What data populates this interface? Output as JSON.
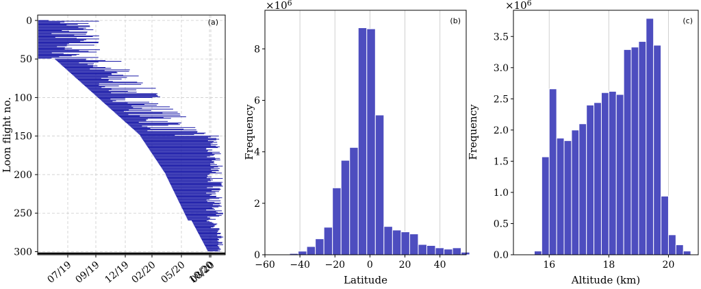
{
  "chart_data": [
    {
      "type": "gantt",
      "panel_label": "(a)",
      "ylabel": "Loon flight no.",
      "xlabel": "",
      "x_ticks": [
        "07/19",
        "09/19",
        "12/19",
        "02/20",
        "05/20",
        "08/20",
        "10/20"
      ],
      "y_ticks": [
        "0",
        "50",
        "100",
        "150",
        "200",
        "250",
        "300"
      ],
      "ylim": [
        304,
        -7
      ],
      "xlim_months": [
        0,
        16.2
      ],
      "flights_total": 300,
      "grid": true,
      "series_color": "#1a1aa8"
    },
    {
      "type": "bar",
      "panel_label": "(b)",
      "xlabel": "Latitude",
      "ylabel": "Frequency",
      "scale_label": "×10",
      "scale_exp": "6",
      "x_ticks": [
        "−60",
        "−40",
        "−20",
        "0",
        "20",
        "40"
      ],
      "y_ticks": [
        "0",
        "2",
        "4",
        "6",
        "8"
      ],
      "xlim": [
        -60,
        55
      ],
      "ylim": [
        0,
        9.5
      ],
      "bin_width": 4.9,
      "bin_edges_start": -45.9,
      "values": [
        0.05,
        0.14,
        0.32,
        0.62,
        1.07,
        2.6,
        3.67,
        4.17,
        8.82,
        8.78,
        5.43,
        1.1,
        0.96,
        0.89,
        0.81,
        0.4,
        0.36,
        0.27,
        0.22,
        0.27,
        0.1
      ],
      "grid": "x",
      "bar_color": "#4d4dbf"
    },
    {
      "type": "bar",
      "panel_label": "(c)",
      "xlabel": "Altitude (km)",
      "ylabel": "Frequency",
      "scale_label": "×10",
      "scale_exp": "6",
      "x_ticks": [
        "16",
        "18",
        "20"
      ],
      "y_ticks": [
        "0.0",
        "0.5",
        "1.0",
        "1.5",
        "2.0",
        "2.5",
        "3.0",
        "3.5"
      ],
      "xlim": [
        14.8,
        21.0
      ],
      "ylim": [
        0,
        3.92
      ],
      "bin_width": 0.25,
      "bin_edges_start": 15.5,
      "values": [
        0.06,
        1.57,
        2.66,
        1.87,
        1.83,
        2.0,
        2.1,
        2.4,
        2.44,
        2.6,
        2.62,
        2.57,
        3.29,
        3.33,
        3.42,
        3.79,
        3.36,
        0.94,
        0.32,
        0.16,
        0.06
      ],
      "grid": "x",
      "bar_color": "#4d4dbf"
    }
  ]
}
